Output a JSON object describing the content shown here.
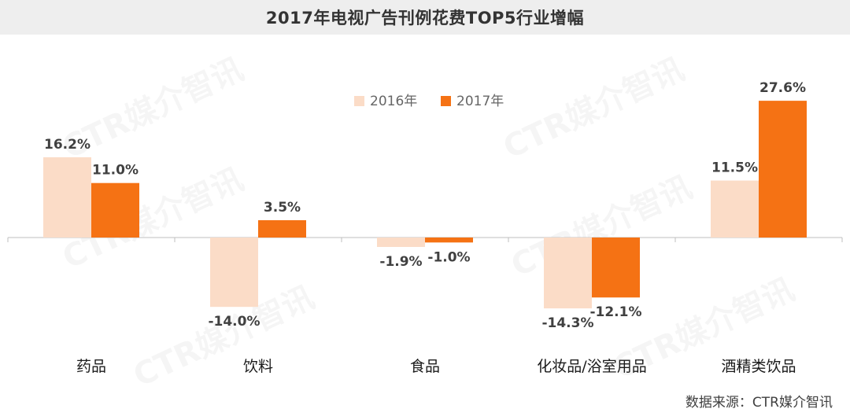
{
  "title": "2017年电视广告刊例花费TOP5行业增幅",
  "source": "数据来源：CTR媒介智讯",
  "watermark_text": "CTR媒介智讯",
  "colors": {
    "series_2016": "#fbdcc7",
    "series_2017": "#f57214",
    "axis": "#bfbfbf"
  },
  "chart_data": {
    "type": "bar",
    "title": "2017年电视广告刊例花费TOP5行业增幅",
    "categories": [
      "药品",
      "饮料",
      "食品",
      "化妆品/浴室用品",
      "酒精类饮品"
    ],
    "series": [
      {
        "name": "2016年",
        "values": [
          16.2,
          -14.0,
          -1.9,
          -14.3,
          11.5
        ],
        "labels": [
          "16.2%",
          "-14.0%",
          "-1.9%",
          "-14.3%",
          "11.5%"
        ]
      },
      {
        "name": "2017年",
        "values": [
          11.0,
          3.5,
          -1.0,
          -12.1,
          27.6
        ],
        "labels": [
          "11.0%",
          "3.5%",
          "-1.0%",
          "-12.1%",
          "27.6%"
        ]
      }
    ],
    "unit": "%",
    "legend_position": "top-center",
    "grid": false
  }
}
